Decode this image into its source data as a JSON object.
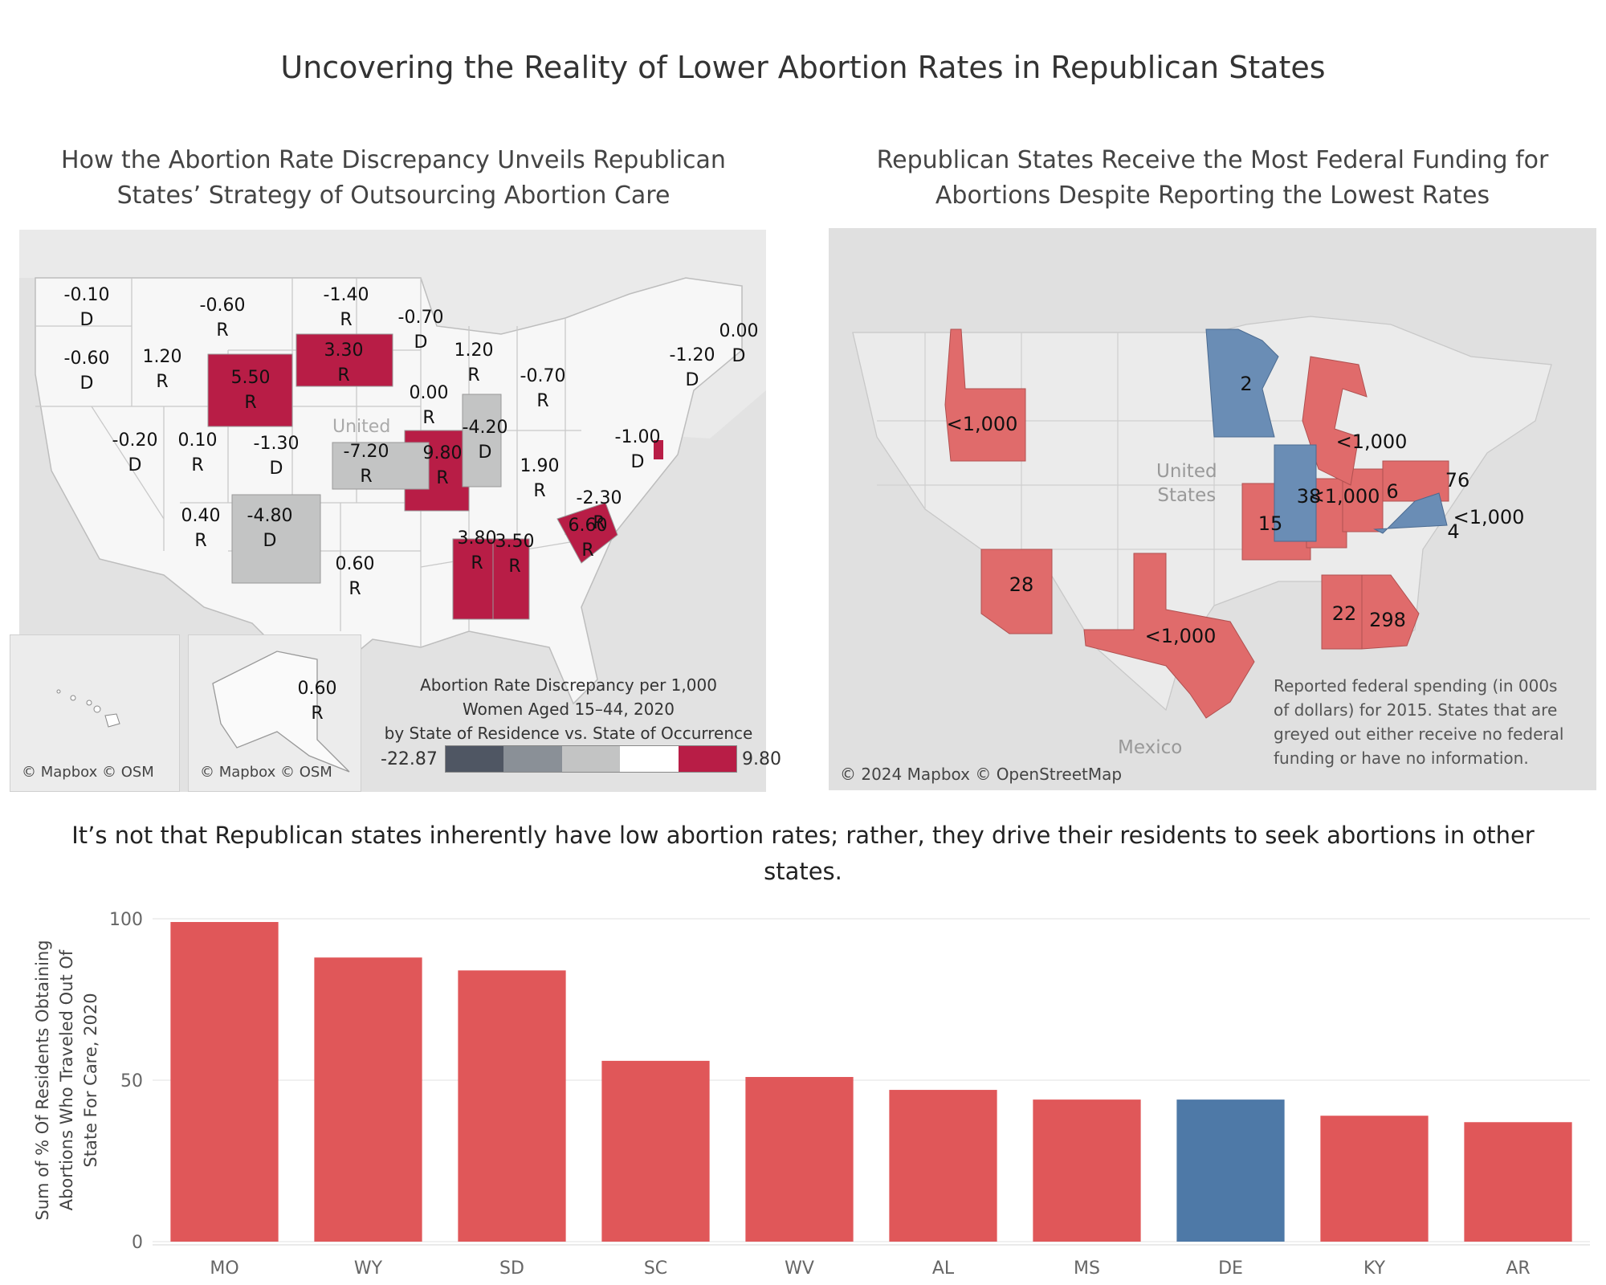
{
  "title": "Uncovering the Reality of Lower Abortion Rates in Republican States",
  "left_map": {
    "subtitle_line1": "How the Abortion Rate Discrepancy Unveils Republican",
    "subtitle_line2": "States’ Strategy of Outsourcing Abortion Care",
    "country_label": "United",
    "labels": [
      {
        "value": "-0.10",
        "party": "D"
      },
      {
        "value": "-0.60",
        "party": "R"
      },
      {
        "value": "-1.40",
        "party": "R"
      },
      {
        "value": "-0.70",
        "party": "D"
      },
      {
        "value": "-0.60",
        "party": "D"
      },
      {
        "value": "1.20",
        "party": "R"
      },
      {
        "value": "5.50",
        "party": "R"
      },
      {
        "value": "3.30",
        "party": "R"
      },
      {
        "value": "1.20",
        "party": "R"
      },
      {
        "value": "-0.70",
        "party": "R"
      },
      {
        "value": "0.00",
        "party": "R"
      },
      {
        "value": "-4.20",
        "party": "D"
      },
      {
        "value": "-1.20",
        "party": "D"
      },
      {
        "value": "0.00",
        "party": "D"
      },
      {
        "value": "-0.20",
        "party": "D"
      },
      {
        "value": "0.10",
        "party": "R"
      },
      {
        "value": "-1.30",
        "party": "D"
      },
      {
        "value": "-7.20",
        "party": "R"
      },
      {
        "value": "9.80",
        "party": "R"
      },
      {
        "value": "1.90",
        "party": "R"
      },
      {
        "value": "-1.00",
        "party": "D"
      },
      {
        "value": "0.40",
        "party": "R"
      },
      {
        "value": "-4.80",
        "party": "D"
      },
      {
        "value": "-2.30",
        "party": "R"
      },
      {
        "value": "3.80",
        "party": "R"
      },
      {
        "value": "3.50",
        "party": "R"
      },
      {
        "value": "6.60",
        "party": "R"
      },
      {
        "value": "0.60",
        "party": "R"
      },
      {
        "value": "0.60",
        "party": "R"
      }
    ],
    "credit_hi": "© Mapbox © OSM",
    "credit_ak": "© Mapbox © OSM",
    "legend": {
      "line1": "Abortion Rate Discrepancy per 1,000",
      "line2": "Women Aged 15–44, 2020",
      "line3": "by State of Residence vs. State of Occurrence",
      "min": "-22.87",
      "max": "9.80",
      "colors": [
        "#4f5663",
        "#8a9097",
        "#c3c4c4",
        "#ffffff",
        "#b81d46"
      ]
    }
  },
  "right_map": {
    "subtitle_line1": "Republican States Receive the Most Federal Funding for",
    "subtitle_line2": "Abortions Despite Reporting the Lowest Rates",
    "country_line1": "United",
    "country_line2": "States",
    "mexico": "Mexico",
    "labels": [
      "2",
      "<1,000",
      "<1,000",
      "38",
      "<1,000",
      "6",
      "76",
      "15",
      "<1,000",
      "4",
      "28",
      "<1,000",
      "22",
      "298"
    ],
    "credit": "© 2024 Mapbox © OpenStreetMap",
    "note_line1": "Reported federal spending (in 000s",
    "note_line2": "of dollars) for 2015. States that are",
    "note_line3": "greyed out either receive no federal",
    "note_line4": "funding or have no information.",
    "colors": {
      "red": "#e06b6b",
      "blue": "#6a8db5"
    }
  },
  "middle_text_line1": "It’s not that Republican states inherently have low abortion rates; rather, they drive their residents to seek abortions in other",
  "middle_text_line2": "states.",
  "chart_data": {
    "type": "bar",
    "categories": [
      "MO",
      "WY",
      "SD",
      "SC",
      "WV",
      "AL",
      "MS",
      "DE",
      "KY",
      "AR"
    ],
    "values": [
      99,
      88,
      84,
      56,
      51,
      47,
      44,
      44,
      39,
      37
    ],
    "colors": [
      "#e05759",
      "#e05759",
      "#e05759",
      "#e05759",
      "#e05759",
      "#e05759",
      "#e05759",
      "#4e79a7",
      "#e05759",
      "#e05759"
    ],
    "ylabel_line1": "Sum of % Of Residents Obtaining",
    "ylabel_line2": "Abortions Who Traveled Out Of",
    "ylabel_line3": "State For Care, 2020",
    "yticks": [
      "0",
      "50",
      "100"
    ],
    "ylim": [
      0,
      100
    ],
    "grid": true
  }
}
